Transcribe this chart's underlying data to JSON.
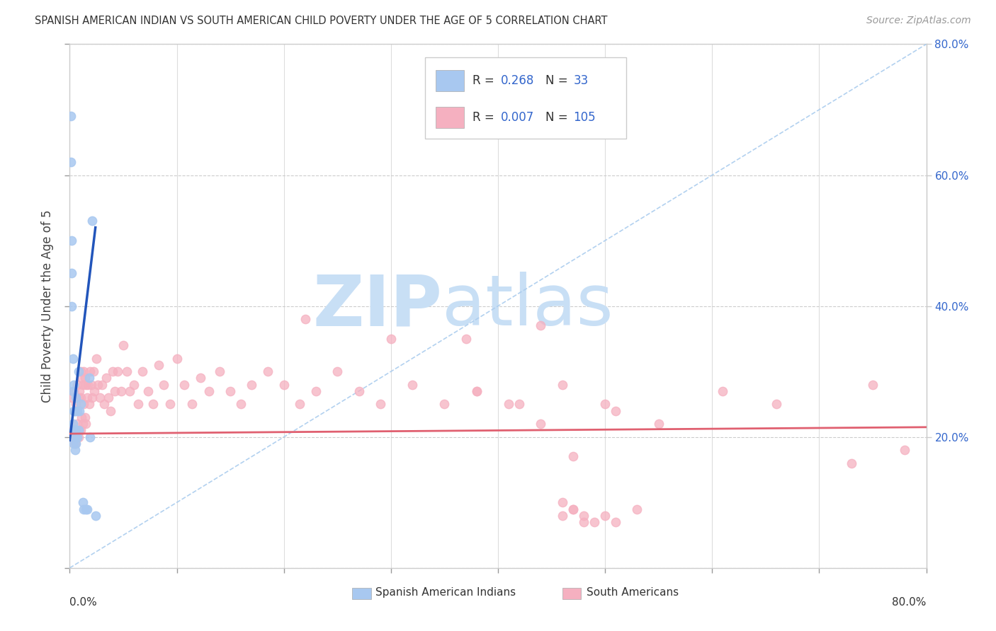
{
  "title": "SPANISH AMERICAN INDIAN VS SOUTH AMERICAN CHILD POVERTY UNDER THE AGE OF 5 CORRELATION CHART",
  "source": "Source: ZipAtlas.com",
  "ylabel": "Child Poverty Under the Age of 5",
  "blue_color": "#a8c8f0",
  "pink_color": "#f5b0c0",
  "blue_line_color": "#2255bb",
  "pink_line_color": "#e06070",
  "dash_line_color": "#aaccee",
  "legend_text_color": "#3366cc",
  "legend_label_color": "#333333",
  "watermark_zip_color": "#c8dff5",
  "watermark_atlas_color": "#c8dff5",
  "blue_x": [
    0.001,
    0.001,
    0.002,
    0.002,
    0.002,
    0.003,
    0.003,
    0.003,
    0.004,
    0.004,
    0.004,
    0.004,
    0.005,
    0.005,
    0.005,
    0.005,
    0.006,
    0.006,
    0.006,
    0.007,
    0.007,
    0.008,
    0.008,
    0.009,
    0.01,
    0.012,
    0.013,
    0.015,
    0.016,
    0.018,
    0.019,
    0.021,
    0.024
  ],
  "blue_y": [
    0.69,
    0.62,
    0.5,
    0.45,
    0.4,
    0.32,
    0.27,
    0.22,
    0.28,
    0.24,
    0.21,
    0.19,
    0.24,
    0.21,
    0.2,
    0.18,
    0.26,
    0.21,
    0.19,
    0.24,
    0.2,
    0.3,
    0.21,
    0.24,
    0.25,
    0.1,
    0.09,
    0.09,
    0.09,
    0.29,
    0.2,
    0.53,
    0.08
  ],
  "pink_x": [
    0.002,
    0.003,
    0.004,
    0.004,
    0.005,
    0.005,
    0.006,
    0.006,
    0.007,
    0.007,
    0.008,
    0.008,
    0.009,
    0.009,
    0.01,
    0.01,
    0.01,
    0.011,
    0.011,
    0.012,
    0.012,
    0.013,
    0.013,
    0.014,
    0.014,
    0.015,
    0.015,
    0.016,
    0.017,
    0.018,
    0.019,
    0.02,
    0.021,
    0.022,
    0.023,
    0.025,
    0.026,
    0.028,
    0.03,
    0.032,
    0.034,
    0.036,
    0.038,
    0.04,
    0.042,
    0.045,
    0.048,
    0.05,
    0.053,
    0.056,
    0.06,
    0.064,
    0.068,
    0.073,
    0.078,
    0.083,
    0.088,
    0.094,
    0.1,
    0.107,
    0.114,
    0.122,
    0.13,
    0.14,
    0.15,
    0.16,
    0.17,
    0.185,
    0.2,
    0.215,
    0.23,
    0.25,
    0.27,
    0.29,
    0.32,
    0.35,
    0.38,
    0.42,
    0.46,
    0.5,
    0.46,
    0.48,
    0.47,
    0.49,
    0.38,
    0.41,
    0.44,
    0.47,
    0.51,
    0.55,
    0.61,
    0.66,
    0.73,
    0.75,
    0.78,
    0.22,
    0.3,
    0.37,
    0.44,
    0.51,
    0.46,
    0.47,
    0.48,
    0.5,
    0.53
  ],
  "pink_y": [
    0.26,
    0.21,
    0.27,
    0.2,
    0.24,
    0.19,
    0.25,
    0.2,
    0.28,
    0.22,
    0.26,
    0.2,
    0.27,
    0.21,
    0.3,
    0.26,
    0.21,
    0.29,
    0.23,
    0.28,
    0.22,
    0.3,
    0.25,
    0.29,
    0.23,
    0.28,
    0.22,
    0.26,
    0.28,
    0.25,
    0.3,
    0.28,
    0.26,
    0.3,
    0.27,
    0.32,
    0.28,
    0.26,
    0.28,
    0.25,
    0.29,
    0.26,
    0.24,
    0.3,
    0.27,
    0.3,
    0.27,
    0.34,
    0.3,
    0.27,
    0.28,
    0.25,
    0.3,
    0.27,
    0.25,
    0.31,
    0.28,
    0.25,
    0.32,
    0.28,
    0.25,
    0.29,
    0.27,
    0.3,
    0.27,
    0.25,
    0.28,
    0.3,
    0.28,
    0.25,
    0.27,
    0.3,
    0.27,
    0.25,
    0.28,
    0.25,
    0.27,
    0.25,
    0.28,
    0.25,
    0.08,
    0.08,
    0.09,
    0.07,
    0.27,
    0.25,
    0.22,
    0.17,
    0.24,
    0.22,
    0.27,
    0.25,
    0.16,
    0.28,
    0.18,
    0.38,
    0.35,
    0.35,
    0.37,
    0.07,
    0.1,
    0.09,
    0.07,
    0.08,
    0.09
  ]
}
